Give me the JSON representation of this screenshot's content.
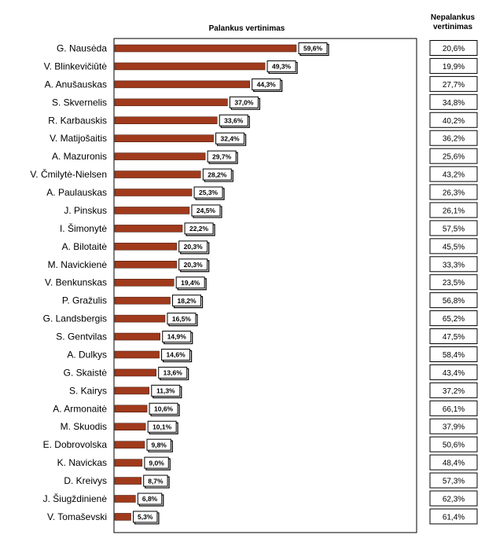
{
  "chart_data": {
    "type": "bar",
    "orientation": "horizontal",
    "title": "Palankus vertinimas",
    "secondary_header": [
      "Nepalankus",
      "vertinimas"
    ],
    "categories": [
      "G. Nausėda",
      "V. Blinkevičiūtė",
      "A. Anušauskas",
      "S. Skvernelis",
      "R. Karbauskis",
      "V. Matijošaitis",
      "A. Mazuronis",
      "V. Čmilytė-Nielsen",
      "A. Paulauskas",
      "J. Pinskus",
      "I. Šimonytė",
      "A. Bilotaitė",
      "M. Navickienė",
      "V. Benkunskas",
      "P. Gražulis",
      "G. Landsbergis",
      "S. Gentvilas",
      "A. Dulkys",
      "G. Skaistė",
      "S. Kairys",
      "A. Armonaitė",
      "M. Skuodis",
      "E. Dobrovolska",
      "K. Navickas",
      "D. Kreivys",
      "J. Šiugždinienė",
      "V. Tomaševski"
    ],
    "values": [
      59.6,
      49.3,
      44.3,
      37.0,
      33.6,
      32.4,
      29.7,
      28.2,
      25.3,
      24.5,
      22.2,
      20.3,
      20.3,
      19.4,
      18.2,
      16.5,
      14.9,
      14.6,
      13.6,
      11.3,
      10.6,
      10.1,
      9.8,
      9.0,
      8.7,
      6.8,
      5.3
    ],
    "value_labels": [
      "59,6%",
      "49,3%",
      "44,3%",
      "37,0%",
      "33,6%",
      "32,4%",
      "29,7%",
      "28,2%",
      "25,3%",
      "24,5%",
      "22,2%",
      "20,3%",
      "20,3%",
      "19,4%",
      "18,2%",
      "16,5%",
      "14,9%",
      "14,6%",
      "13,6%",
      "11,3%",
      "10,6%",
      "10,1%",
      "9,8%",
      "9,0%",
      "8,7%",
      "6,8%",
      "5,3%"
    ],
    "negative_labels": [
      "20,6%",
      "19,9%",
      "27,7%",
      "34,8%",
      "40,2%",
      "36,2%",
      "25,6%",
      "43,2%",
      "26,3%",
      "26,1%",
      "57,5%",
      "45,5%",
      "33,3%",
      "23,5%",
      "56,8%",
      "65,2%",
      "47,5%",
      "58,4%",
      "43,4%",
      "37,2%",
      "66,1%",
      "37,9%",
      "50,6%",
      "48,4%",
      "57,3%",
      "62,3%",
      "61,4%"
    ],
    "xlim": [
      0,
      100
    ],
    "grid": false,
    "bar_color": "#a03a1c"
  }
}
